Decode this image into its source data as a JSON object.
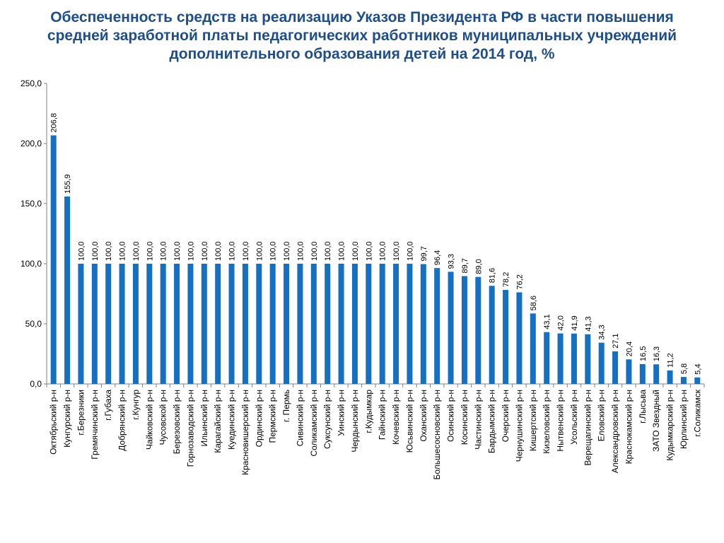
{
  "title_lines": [
    "Обеспеченность средств на реализацию Указов Президента РФ в части повышения",
    "средней заработной платы педагогических работников муниципальных учреждений",
    "дополнительного образования детей на 2014 год, %"
  ],
  "colors": {
    "bar": "#1670c2",
    "title": "#1f4e8c",
    "axis": "#808080"
  },
  "chart_data": {
    "type": "bar",
    "title": "Обеспеченность средств на реализацию Указов Президента РФ в части повышения средней заработной платы педагогических работников муниципальных учреждений дополнительного образования детей на 2014 год, %",
    "ylim": [
      0,
      250
    ],
    "yticks": [
      "0,0",
      "50,0",
      "100,0",
      "150,0",
      "200,0",
      "250,0"
    ],
    "ytick_values": [
      0,
      50,
      100,
      150,
      200,
      250
    ],
    "grid": false,
    "legend": "none",
    "categories": [
      "Октябрьский р-н",
      "Кунгурский р-н",
      "г.Березники",
      "Гремячинский р-н",
      "г.Губаха",
      "Добрянский р-н",
      "г.Кунгур",
      "Чайковский р-н",
      "Чусовской р-н",
      "Березовский р-н",
      "Горнозаводский р-н",
      "Ильинский р-н",
      "Карагайский р-н",
      "Куединский р-н",
      "Красновишерский р-н",
      "Ординский р-н",
      "Пермский р-н",
      "г. Пермь",
      "Сивинский р-н",
      "Соликамский р-н",
      "Суксунский р-н",
      "Уинский р-н",
      "Чердынский р-н",
      "г.Кудымкар",
      "Гайнский р-н",
      "Кочевский р-н",
      "Юсьвинский р-н",
      "Оханский р-н",
      "Большесосновский р-н",
      "Осинский р-н",
      "Косинский р-н",
      "Частинский р-н",
      "Бардымский р-н",
      "Очерский р-н",
      "Чернушинский р-н",
      "Кишертский р-н",
      "Кизеловский р-н",
      "Нытвенский р-н",
      "Усольский р-н",
      "Верещагинский р-н",
      "Еловский р-н",
      "Александровский р-н",
      "Краснокамский р-н",
      "г.Лысьва",
      "ЗАТО Звездный",
      "Кудымкарский р-н",
      "Юрлинский р-н",
      "г.Соликамск"
    ],
    "values": [
      206.8,
      155.9,
      100.0,
      100.0,
      100.0,
      100.0,
      100.0,
      100.0,
      100.0,
      100.0,
      100.0,
      100.0,
      100.0,
      100.0,
      100.0,
      100.0,
      100.0,
      100.0,
      100.0,
      100.0,
      100.0,
      100.0,
      100.0,
      100.0,
      100.0,
      100.0,
      100.0,
      99.7,
      96.4,
      93.3,
      89.7,
      89.0,
      81.6,
      78.2,
      76.2,
      58.6,
      43.1,
      42.0,
      41.9,
      41.3,
      34.3,
      27.1,
      20.4,
      16.5,
      16.3,
      11.2,
      5.8,
      5.4
    ],
    "value_labels": [
      "206,8",
      "155,9",
      "100,0",
      "100,0",
      "100,0",
      "100,0",
      "100,0",
      "100,0",
      "100,0",
      "100,0",
      "100,0",
      "100,0",
      "100,0",
      "100,0",
      "100,0",
      "100,0",
      "100,0",
      "100,0",
      "100,0",
      "100,0",
      "100,0",
      "100,0",
      "100,0",
      "100,0",
      "100,0",
      "100,0",
      "100,0",
      "99,7",
      "96,4",
      "93,3",
      "89,7",
      "89,0",
      "81,6",
      "78,2",
      "76,2",
      "58,6",
      "43,1",
      "42,0",
      "41,9",
      "41,3",
      "34,3",
      "27,1",
      "20,4",
      "16,5",
      "16,3",
      "11,2",
      "5,8",
      "5,4"
    ]
  }
}
